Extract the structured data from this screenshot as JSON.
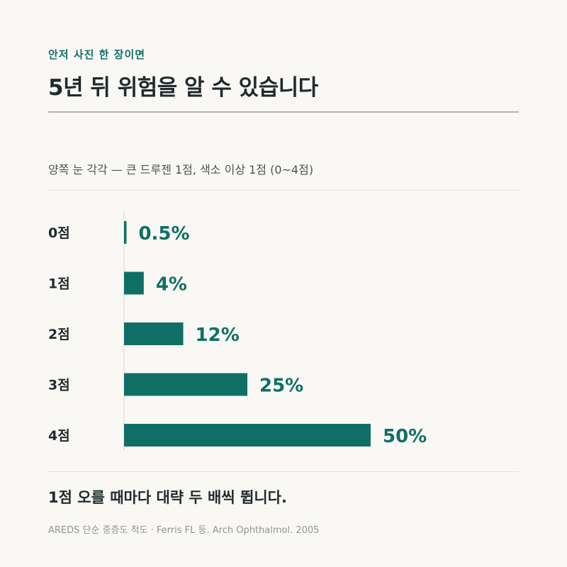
{
  "header": {
    "eyebrow": "안저 사진 한 장이면",
    "title": "5년 뒤 위험을 알 수 있습니다"
  },
  "subtitle": "양쪽 눈 각각 — 큰 드루젠 1점, 색소 이상 1점 (0~4점)",
  "chart_data": {
    "type": "bar",
    "orientation": "horizontal",
    "categories": [
      "0점",
      "1점",
      "2점",
      "3점",
      "4점"
    ],
    "values": [
      0.5,
      4,
      12,
      25,
      50
    ],
    "value_labels": [
      "0.5%",
      "4%",
      "12%",
      "25%",
      "50%"
    ],
    "xlim": [
      0,
      50
    ],
    "grid": false,
    "legend": "none",
    "bar_color": "#0f6f66",
    "label_color": "#0f6f66"
  },
  "footer": {
    "takeaway": "1점 오를 때마다 대략 두 배씩 뜁니다.",
    "source": "AREDS 단순 중증도 척도 · Ferris FL 등. Arch Ophthalmol. 2005"
  }
}
